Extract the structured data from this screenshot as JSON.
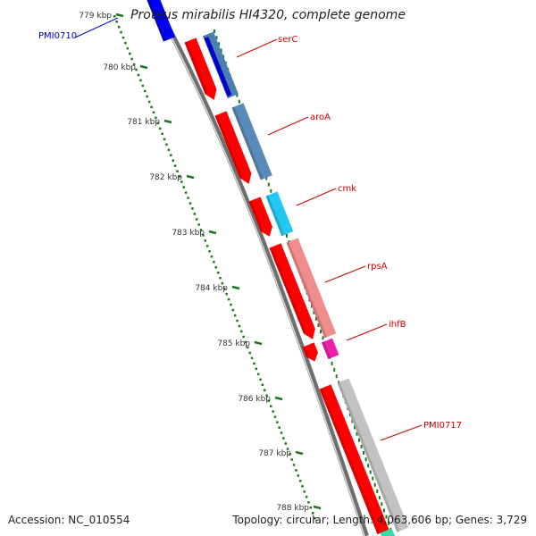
{
  "title": "Proteus mirabilis HI4320, complete genome",
  "footer": {
    "accession": "Accession: NC_010554",
    "summary": "Topology: circular; Length: 4,063,606 bp; Genes: 3,729"
  },
  "colors": {
    "backbone": "#8a8a8a",
    "tick": "#1a7a1a",
    "gene_label": "#cc0000",
    "pmi0710_label": "#0000cc",
    "cds_forward": "#ff0000"
  },
  "ruler_ticks": [
    {
      "label": "779 kbp"
    },
    {
      "label": "780 kbp"
    },
    {
      "label": "781 kbp"
    },
    {
      "label": "782 kbp"
    },
    {
      "label": "783 kbp"
    },
    {
      "label": "784 kbp"
    },
    {
      "label": "785 kbp"
    },
    {
      "label": "786 kbp"
    },
    {
      "label": "787 kbp"
    },
    {
      "label": "788 kbp"
    }
  ],
  "genes": [
    {
      "label": "PMI0710",
      "color": "#0000ee"
    },
    {
      "label": "serC",
      "color": "#4a7fb0"
    },
    {
      "label": "aroA",
      "color": "#5a8ab8"
    },
    {
      "label": "cmk",
      "color": "#22c8f2"
    },
    {
      "label": "rpsA",
      "color": "#f08c8c"
    },
    {
      "label": "ihfB",
      "color": "#ee22aa"
    },
    {
      "label": "PMI0717",
      "color": "#c2c2c2"
    }
  ]
}
